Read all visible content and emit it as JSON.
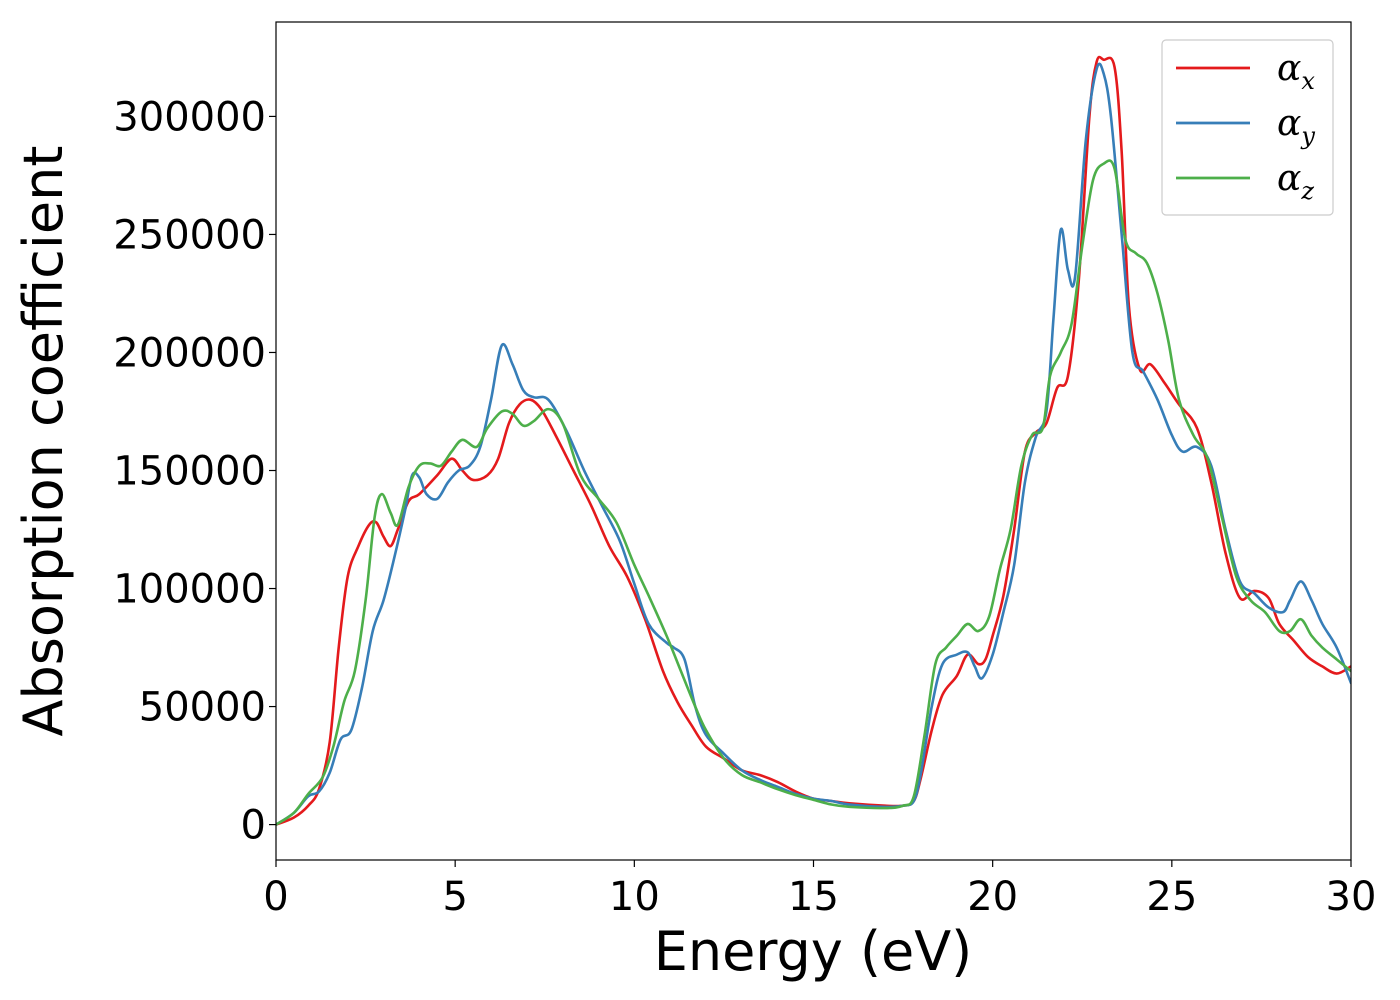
{
  "chart_data": {
    "type": "line",
    "title": "",
    "xlabel": "Energy (eV)",
    "ylabel": "Absorption coefficient",
    "xlim": [
      0,
      30
    ],
    "ylim": [
      -15000,
      340000
    ],
    "xticks": [
      0,
      5,
      10,
      15,
      20,
      25,
      30
    ],
    "yticks": [
      0,
      50000,
      100000,
      150000,
      200000,
      250000,
      300000
    ],
    "grid": false,
    "legend_position": "top-right",
    "series": [
      {
        "name": "α_x",
        "label_base": "α",
        "label_sub": "x",
        "color": "#e41a1c",
        "points": [
          [
            0,
            0
          ],
          [
            0.5,
            3000
          ],
          [
            0.9,
            8000
          ],
          [
            1.2,
            15000
          ],
          [
            1.5,
            35000
          ],
          [
            1.75,
            75000
          ],
          [
            2.0,
            105000
          ],
          [
            2.3,
            118000
          ],
          [
            2.6,
            127000
          ],
          [
            2.8,
            128000
          ],
          [
            3.0,
            122000
          ],
          [
            3.2,
            118000
          ],
          [
            3.4,
            125000
          ],
          [
            3.7,
            137000
          ],
          [
            4.0,
            140000
          ],
          [
            4.5,
            148000
          ],
          [
            4.9,
            155000
          ],
          [
            5.2,
            150000
          ],
          [
            5.5,
            146000
          ],
          [
            5.9,
            148000
          ],
          [
            6.2,
            155000
          ],
          [
            6.5,
            170000
          ],
          [
            6.8,
            178000
          ],
          [
            7.1,
            180000
          ],
          [
            7.4,
            176000
          ],
          [
            7.8,
            165000
          ],
          [
            8.3,
            150000
          ],
          [
            8.8,
            135000
          ],
          [
            9.3,
            118000
          ],
          [
            9.8,
            105000
          ],
          [
            10.3,
            87000
          ],
          [
            10.8,
            65000
          ],
          [
            11.2,
            52000
          ],
          [
            11.6,
            42000
          ],
          [
            12.0,
            33000
          ],
          [
            12.5,
            28000
          ],
          [
            13.0,
            23000
          ],
          [
            13.5,
            21000
          ],
          [
            14.0,
            18000
          ],
          [
            14.5,
            14000
          ],
          [
            15.0,
            11000
          ],
          [
            15.5,
            10000
          ],
          [
            16.0,
            9000
          ],
          [
            17.0,
            8000
          ],
          [
            17.5,
            8000
          ],
          [
            17.8,
            10000
          ],
          [
            18.0,
            20000
          ],
          [
            18.3,
            40000
          ],
          [
            18.6,
            55000
          ],
          [
            19.0,
            63000
          ],
          [
            19.3,
            72000
          ],
          [
            19.6,
            68000
          ],
          [
            19.8,
            70000
          ],
          [
            20.0,
            80000
          ],
          [
            20.3,
            97000
          ],
          [
            20.6,
            125000
          ],
          [
            20.9,
            158000
          ],
          [
            21.2,
            166000
          ],
          [
            21.5,
            170000
          ],
          [
            21.8,
            185000
          ],
          [
            22.1,
            190000
          ],
          [
            22.4,
            230000
          ],
          [
            22.7,
            300000
          ],
          [
            22.9,
            323000
          ],
          [
            23.1,
            324000
          ],
          [
            23.4,
            321000
          ],
          [
            23.6,
            285000
          ],
          [
            23.8,
            220000
          ],
          [
            24.1,
            193000
          ],
          [
            24.4,
            195000
          ],
          [
            24.8,
            187000
          ],
          [
            25.2,
            178000
          ],
          [
            25.7,
            168000
          ],
          [
            26.1,
            145000
          ],
          [
            26.5,
            115000
          ],
          [
            26.9,
            96000
          ],
          [
            27.3,
            99000
          ],
          [
            27.7,
            96000
          ],
          [
            28.0,
            85000
          ],
          [
            28.4,
            78000
          ],
          [
            28.8,
            71000
          ],
          [
            29.2,
            67000
          ],
          [
            29.6,
            64000
          ],
          [
            30.0,
            67000
          ]
        ]
      },
      {
        "name": "α_y",
        "label_base": "α",
        "label_sub": "y",
        "color": "#377eb8",
        "points": [
          [
            0,
            0
          ],
          [
            0.5,
            5000
          ],
          [
            0.9,
            12000
          ],
          [
            1.2,
            14000
          ],
          [
            1.5,
            22000
          ],
          [
            1.8,
            36000
          ],
          [
            2.1,
            40000
          ],
          [
            2.4,
            58000
          ],
          [
            2.7,
            82000
          ],
          [
            3.0,
            95000
          ],
          [
            3.3,
            113000
          ],
          [
            3.6,
            133000
          ],
          [
            3.8,
            148000
          ],
          [
            4.0,
            147000
          ],
          [
            4.2,
            140000
          ],
          [
            4.5,
            138000
          ],
          [
            4.8,
            145000
          ],
          [
            5.1,
            150000
          ],
          [
            5.4,
            152000
          ],
          [
            5.7,
            160000
          ],
          [
            6.0,
            180000
          ],
          [
            6.3,
            203000
          ],
          [
            6.6,
            195000
          ],
          [
            6.9,
            184000
          ],
          [
            7.2,
            181000
          ],
          [
            7.6,
            180000
          ],
          [
            8.1,
            167000
          ],
          [
            8.6,
            150000
          ],
          [
            9.1,
            135000
          ],
          [
            9.6,
            120000
          ],
          [
            10.0,
            102000
          ],
          [
            10.4,
            85000
          ],
          [
            10.9,
            77000
          ],
          [
            11.1,
            75000
          ],
          [
            11.4,
            70000
          ],
          [
            11.7,
            50000
          ],
          [
            12.0,
            38000
          ],
          [
            12.5,
            30000
          ],
          [
            13.0,
            23000
          ],
          [
            13.5,
            19000
          ],
          [
            14.0,
            16000
          ],
          [
            14.5,
            13000
          ],
          [
            15.0,
            11000
          ],
          [
            15.5,
            10000
          ],
          [
            16.0,
            8500
          ],
          [
            17.0,
            7500
          ],
          [
            17.5,
            8000
          ],
          [
            17.8,
            10000
          ],
          [
            18.0,
            22000
          ],
          [
            18.3,
            50000
          ],
          [
            18.6,
            68000
          ],
          [
            19.0,
            72000
          ],
          [
            19.3,
            73000
          ],
          [
            19.5,
            67000
          ],
          [
            19.7,
            62000
          ],
          [
            20.0,
            72000
          ],
          [
            20.3,
            90000
          ],
          [
            20.6,
            110000
          ],
          [
            20.9,
            145000
          ],
          [
            21.2,
            164000
          ],
          [
            21.5,
            175000
          ],
          [
            21.7,
            215000
          ],
          [
            21.9,
            252000
          ],
          [
            22.1,
            235000
          ],
          [
            22.3,
            232000
          ],
          [
            22.6,
            290000
          ],
          [
            22.9,
            320000
          ],
          [
            23.1,
            318000
          ],
          [
            23.3,
            300000
          ],
          [
            23.6,
            250000
          ],
          [
            23.9,
            200000
          ],
          [
            24.2,
            192000
          ],
          [
            24.6,
            180000
          ],
          [
            25.0,
            165000
          ],
          [
            25.3,
            158000
          ],
          [
            25.7,
            160000
          ],
          [
            26.1,
            152000
          ],
          [
            26.5,
            125000
          ],
          [
            26.9,
            103000
          ],
          [
            27.3,
            98000
          ],
          [
            27.7,
            92000
          ],
          [
            28.1,
            90000
          ],
          [
            28.3,
            95000
          ],
          [
            28.6,
            103000
          ],
          [
            28.9,
            95000
          ],
          [
            29.2,
            85000
          ],
          [
            29.6,
            75000
          ],
          [
            30.0,
            60000
          ]
        ]
      },
      {
        "name": "α_z",
        "label_base": "α",
        "label_sub": "z",
        "color": "#4daf4a",
        "points": [
          [
            0,
            0
          ],
          [
            0.5,
            5000
          ],
          [
            0.9,
            13000
          ],
          [
            1.3,
            20000
          ],
          [
            1.6,
            33000
          ],
          [
            1.9,
            52000
          ],
          [
            2.2,
            65000
          ],
          [
            2.5,
            95000
          ],
          [
            2.75,
            130000
          ],
          [
            2.95,
            140000
          ],
          [
            3.2,
            132000
          ],
          [
            3.4,
            127000
          ],
          [
            3.7,
            143000
          ],
          [
            4.0,
            152000
          ],
          [
            4.3,
            153000
          ],
          [
            4.6,
            152000
          ],
          [
            4.9,
            158000
          ],
          [
            5.2,
            163000
          ],
          [
            5.6,
            160000
          ],
          [
            5.9,
            168000
          ],
          [
            6.3,
            175000
          ],
          [
            6.6,
            174000
          ],
          [
            6.9,
            169000
          ],
          [
            7.2,
            171000
          ],
          [
            7.6,
            176000
          ],
          [
            8.0,
            170000
          ],
          [
            8.5,
            148000
          ],
          [
            9.0,
            138000
          ],
          [
            9.5,
            128000
          ],
          [
            10.0,
            110000
          ],
          [
            10.4,
            97000
          ],
          [
            10.9,
            80000
          ],
          [
            11.3,
            65000
          ],
          [
            11.7,
            50000
          ],
          [
            12.0,
            40000
          ],
          [
            12.5,
            28000
          ],
          [
            13.0,
            21000
          ],
          [
            13.5,
            18000
          ],
          [
            14.0,
            15000
          ],
          [
            14.5,
            12500
          ],
          [
            15.0,
            10500
          ],
          [
            15.5,
            8500
          ],
          [
            16.0,
            7500
          ],
          [
            17.0,
            7000
          ],
          [
            17.5,
            8000
          ],
          [
            17.8,
            12000
          ],
          [
            18.1,
            38000
          ],
          [
            18.4,
            68000
          ],
          [
            18.7,
            75000
          ],
          [
            19.0,
            80000
          ],
          [
            19.3,
            85000
          ],
          [
            19.6,
            82000
          ],
          [
            19.9,
            88000
          ],
          [
            20.2,
            108000
          ],
          [
            20.5,
            125000
          ],
          [
            20.8,
            152000
          ],
          [
            21.1,
            165000
          ],
          [
            21.4,
            168000
          ],
          [
            21.6,
            190000
          ],
          [
            21.9,
            200000
          ],
          [
            22.2,
            212000
          ],
          [
            22.5,
            245000
          ],
          [
            22.8,
            273000
          ],
          [
            23.1,
            280000
          ],
          [
            23.4,
            278000
          ],
          [
            23.7,
            248000
          ],
          [
            24.0,
            242000
          ],
          [
            24.3,
            238000
          ],
          [
            24.6,
            225000
          ],
          [
            24.9,
            205000
          ],
          [
            25.2,
            180000
          ],
          [
            25.6,
            165000
          ],
          [
            26.0,
            155000
          ],
          [
            26.4,
            130000
          ],
          [
            26.8,
            105000
          ],
          [
            27.2,
            95000
          ],
          [
            27.6,
            90000
          ],
          [
            28.0,
            82000
          ],
          [
            28.3,
            82000
          ],
          [
            28.6,
            87000
          ],
          [
            28.9,
            80000
          ],
          [
            29.2,
            75000
          ],
          [
            29.6,
            70000
          ],
          [
            30.0,
            65000
          ]
        ]
      }
    ]
  }
}
